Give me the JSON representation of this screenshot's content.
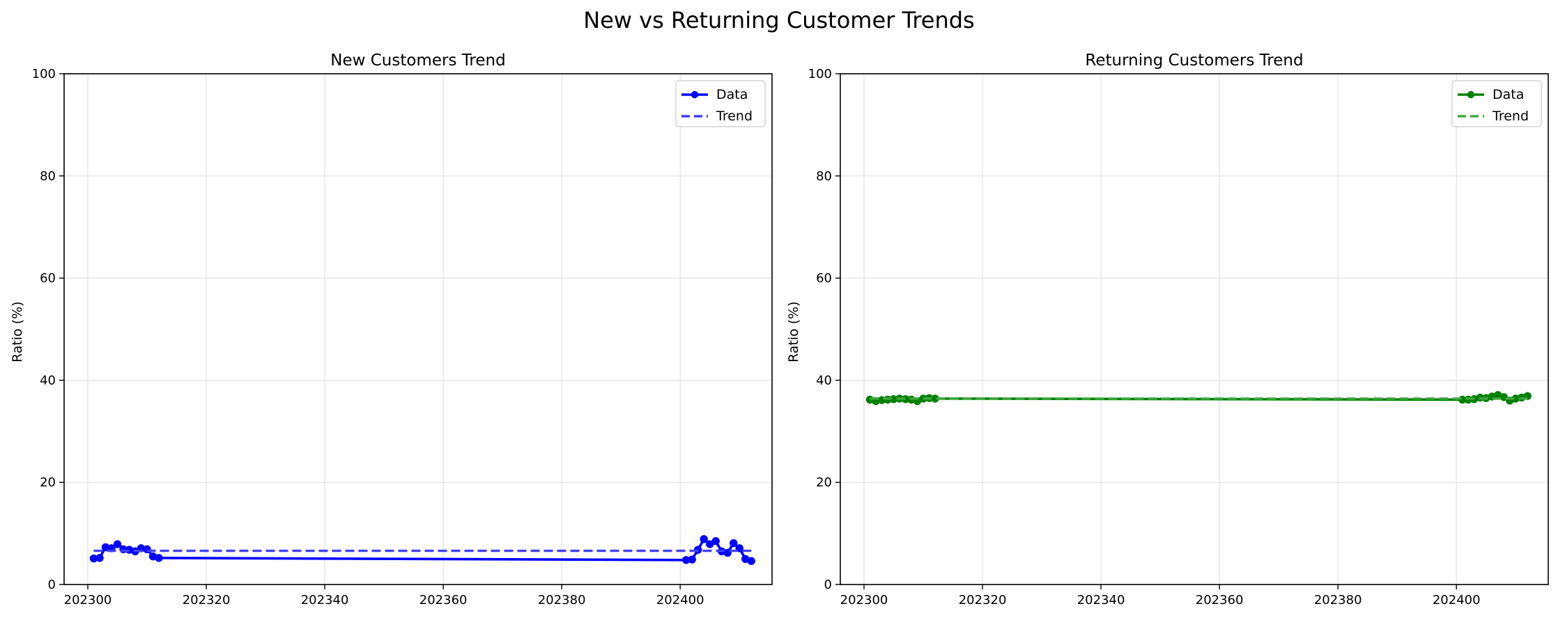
{
  "figure": {
    "suptitle": "New vs Returning Customer Trends"
  },
  "chart_data": [
    {
      "type": "line",
      "title": "New Customers Trend",
      "xlabel": "",
      "ylabel": "Ratio (%)",
      "xlim": [
        202296.0,
        202415.5
      ],
      "ylim": [
        0,
        100
      ],
      "xticks": [
        202300,
        202320,
        202340,
        202360,
        202380,
        202400
      ],
      "yticks": [
        0,
        20,
        40,
        60,
        80,
        100
      ],
      "grid": true,
      "legend_position": "upper right",
      "series": [
        {
          "name": "Data",
          "style": "solid line with circle markers",
          "color": "#0000ff",
          "x": [
            202301,
            202302,
            202303,
            202304,
            202305,
            202306,
            202307,
            202308,
            202309,
            202310,
            202311,
            202312,
            202401,
            202402,
            202403,
            202404,
            202405,
            202406,
            202407,
            202408,
            202409,
            202410,
            202411,
            202412
          ],
          "y": [
            5.1,
            5.2,
            7.3,
            7.1,
            7.9,
            6.9,
            6.8,
            6.5,
            7.1,
            6.9,
            5.5,
            5.2,
            4.8,
            4.9,
            6.8,
            8.9,
            7.9,
            8.5,
            6.5,
            6.2,
            8.1,
            7.1,
            5.0,
            4.6
          ]
        },
        {
          "name": "Trend",
          "style": "dashed line",
          "color": "#4040ff",
          "x": [
            202301,
            202412
          ],
          "y": [
            6.6,
            6.6
          ]
        }
      ]
    },
    {
      "type": "line",
      "title": "Returning Customers Trend",
      "xlabel": "",
      "ylabel": "Ratio (%)",
      "xlim": [
        202296.0,
        202415.5
      ],
      "ylim": [
        0,
        100
      ],
      "xticks": [
        202300,
        202320,
        202340,
        202360,
        202380,
        202400
      ],
      "yticks": [
        0,
        20,
        40,
        60,
        80,
        100
      ],
      "grid": true,
      "legend_position": "upper right",
      "series": [
        {
          "name": "Data",
          "style": "solid line with circle markers",
          "color": "#008000",
          "x": [
            202301,
            202302,
            202303,
            202304,
            202305,
            202306,
            202307,
            202308,
            202309,
            202310,
            202311,
            202312,
            202401,
            202402,
            202403,
            202404,
            202405,
            202406,
            202407,
            202408,
            202409,
            202410,
            202411,
            202412
          ],
          "y": [
            36.2,
            35.9,
            36.1,
            36.2,
            36.3,
            36.4,
            36.3,
            36.2,
            35.9,
            36.4,
            36.5,
            36.4,
            36.2,
            36.2,
            36.3,
            36.6,
            36.5,
            36.8,
            37.1,
            36.7,
            36.0,
            36.4,
            36.6,
            36.9
          ]
        },
        {
          "name": "Trend",
          "style": "dashed line",
          "color": "#40a840",
          "x": [
            202301,
            202412
          ],
          "y": [
            36.4,
            36.4
          ]
        }
      ]
    }
  ]
}
